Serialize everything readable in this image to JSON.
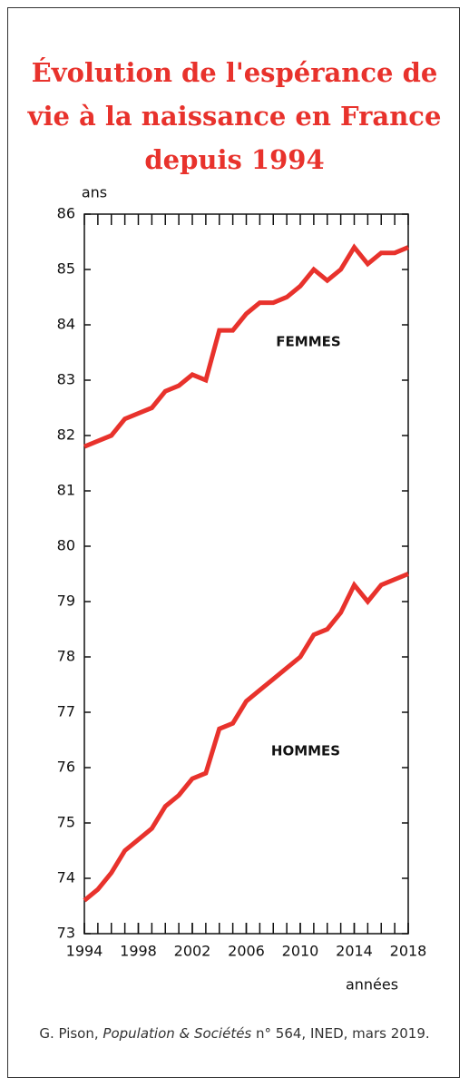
{
  "chart_data": {
    "type": "line",
    "title": "Évolution de l'espérance de vie à la naissance en France depuis 1994",
    "y_label": "ans",
    "x_label": "années",
    "x": [
      1994,
      1995,
      1996,
      1997,
      1998,
      1999,
      2000,
      2001,
      2002,
      2003,
      2004,
      2005,
      2006,
      2007,
      2008,
      2009,
      2010,
      2011,
      2012,
      2013,
      2014,
      2015,
      2016,
      2017,
      2018
    ],
    "series": [
      {
        "name": "FEMMES",
        "color": "#e8322c",
        "values": [
          81.8,
          81.9,
          82.0,
          82.3,
          82.4,
          82.5,
          82.8,
          82.9,
          83.1,
          83.0,
          83.9,
          83.9,
          84.2,
          84.4,
          84.4,
          84.5,
          84.7,
          85.0,
          84.8,
          85.0,
          85.4,
          85.1,
          85.3,
          85.3,
          85.4
        ]
      },
      {
        "name": "HOMMES",
        "color": "#e8322c",
        "values": [
          73.6,
          73.8,
          74.1,
          74.5,
          74.7,
          74.9,
          75.3,
          75.5,
          75.8,
          75.9,
          76.7,
          76.8,
          77.2,
          77.4,
          77.6,
          77.8,
          78.0,
          78.4,
          78.5,
          78.8,
          79.3,
          79.0,
          79.3,
          79.4,
          79.5
        ]
      }
    ],
    "xlim": [
      1994,
      2018
    ],
    "xticks": [
      1994,
      1998,
      2002,
      2006,
      2010,
      2014,
      2018
    ],
    "x_minor_step": 1,
    "ylim": [
      73,
      86
    ],
    "yticks": [
      73,
      74,
      75,
      76,
      77,
      78,
      79,
      80,
      81,
      82,
      83,
      84,
      85,
      86
    ],
    "source": {
      "author": "G. Pison, ",
      "publication": "Population & Sociétés",
      "details": " n° 564, INED, mars 2019."
    }
  }
}
